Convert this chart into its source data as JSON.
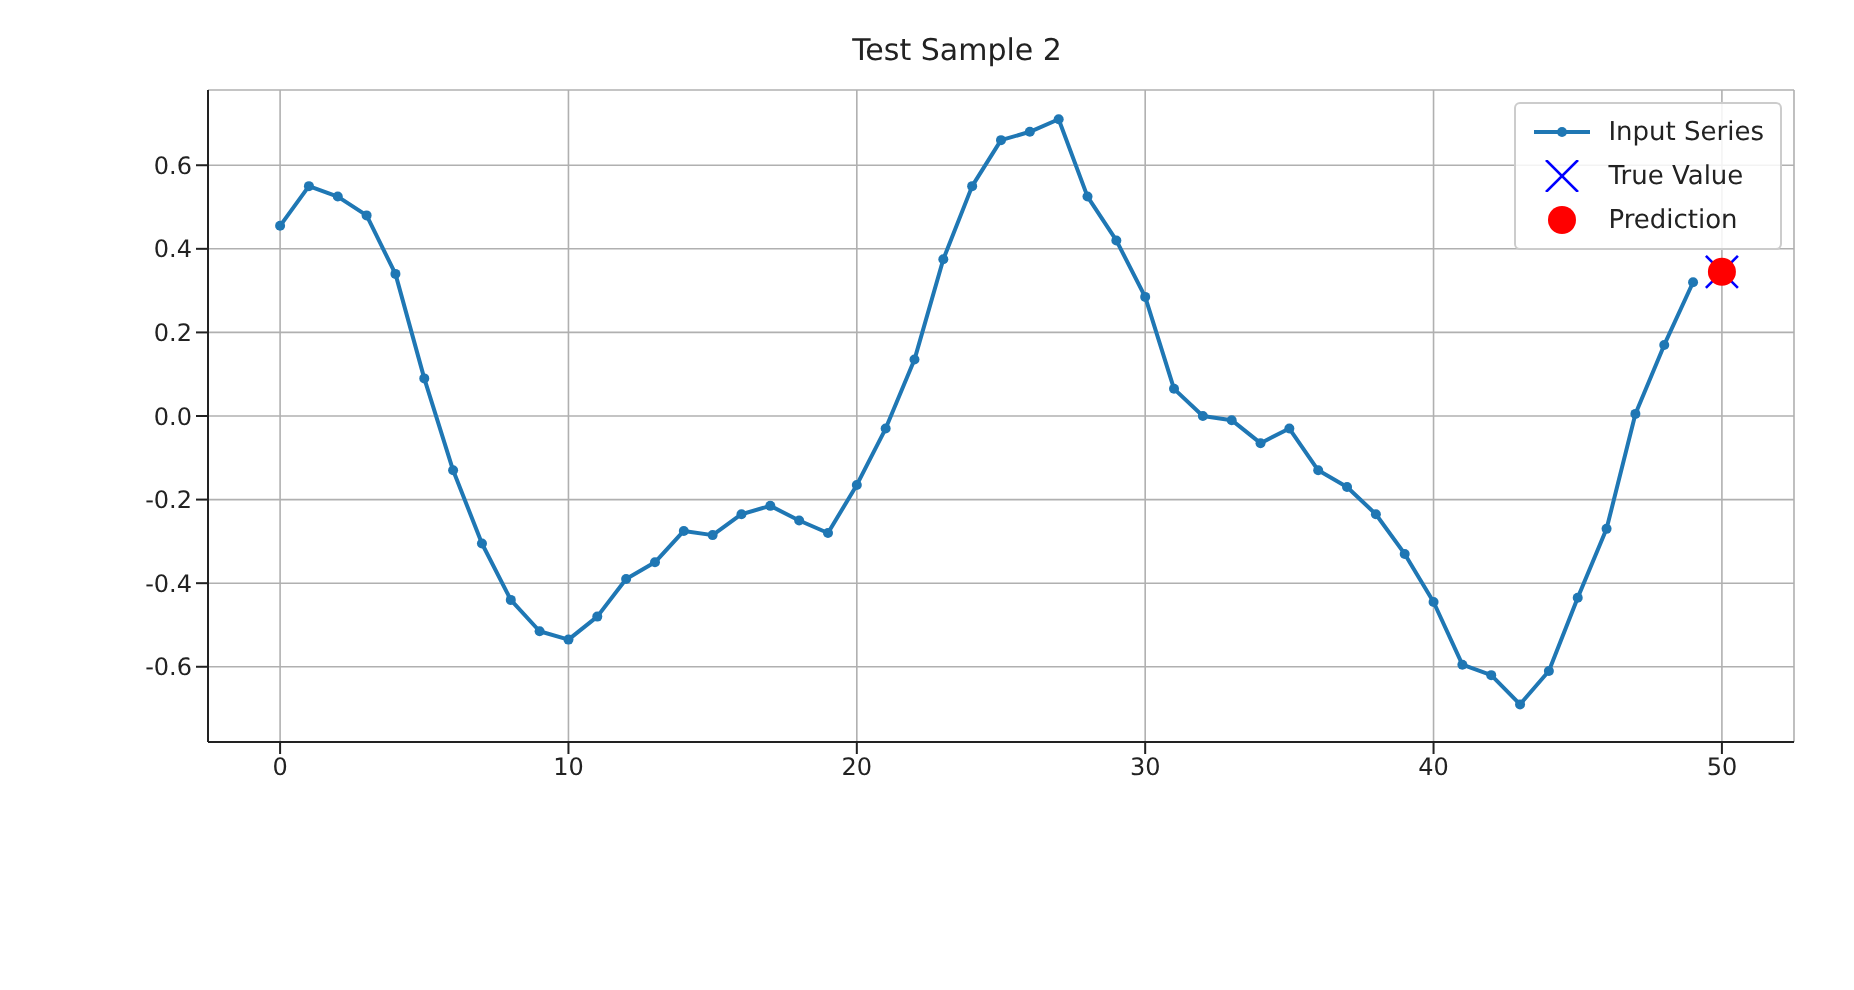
{
  "chart_data": {
    "type": "line",
    "title": "Test Sample 2",
    "xlim": [
      -2.5,
      52.5
    ],
    "xticks": [
      0,
      10,
      20,
      30,
      40,
      50
    ],
    "ylim": [
      -0.78,
      0.78
    ],
    "yticks": [
      -0.6,
      -0.4,
      -0.2,
      {
        "value": 0,
        "label": "0.0"
      },
      0.2,
      0.4,
      0.6
    ],
    "grid": true,
    "legend": "top right",
    "series": [
      {
        "name": "Input Series",
        "type": "line",
        "marker": "circle",
        "color": "#1f77b4",
        "x": [
          0,
          1,
          2,
          3,
          4,
          5,
          6,
          7,
          8,
          9,
          10,
          11,
          12,
          13,
          14,
          15,
          16,
          17,
          18,
          19,
          20,
          21,
          22,
          23,
          24,
          25,
          26,
          27,
          28,
          29,
          30,
          31,
          32,
          33,
          34,
          35,
          36,
          37,
          38,
          39,
          40,
          41,
          42,
          43,
          44,
          45,
          46,
          47,
          48,
          49
        ],
        "values": [
          0.455,
          0.55,
          0.525,
          0.48,
          0.34,
          0.09,
          -0.13,
          -0.305,
          -0.44,
          -0.515,
          -0.535,
          -0.48,
          -0.39,
          -0.35,
          -0.275,
          -0.285,
          -0.235,
          -0.215,
          -0.25,
          -0.28,
          -0.165,
          -0.03,
          0.135,
          0.375,
          0.55,
          0.66,
          0.68,
          0.71,
          0.525,
          0.42,
          0.285,
          0.065,
          0.0,
          -0.01,
          -0.065,
          -0.03,
          -0.13,
          -0.17,
          -0.235,
          -0.33,
          -0.445,
          -0.595,
          -0.62,
          -0.69,
          -0.61,
          -0.435,
          -0.27,
          0.005,
          0.17,
          0.32
        ]
      },
      {
        "name": "True Value",
        "type": "scatter",
        "marker": "cross",
        "color": "#0000ff",
        "x": [
          50
        ],
        "values": [
          0.345
        ]
      },
      {
        "name": "Prediction",
        "type": "scatter",
        "marker": "circle",
        "color": "#ff0000",
        "x": [
          50
        ],
        "values": [
          0.345
        ]
      }
    ]
  }
}
